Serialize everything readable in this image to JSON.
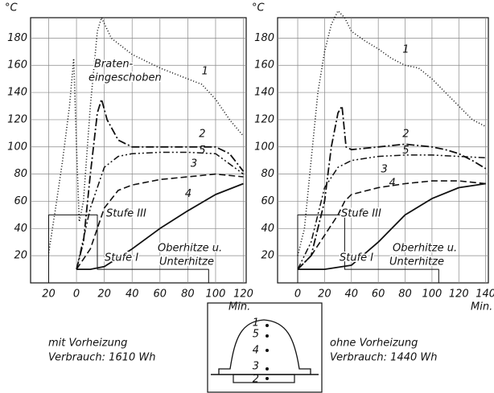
{
  "chart_data": [
    {
      "type": "line",
      "ylabel": "°C",
      "xlabel": "Min.",
      "grid": true,
      "xlim": [
        -33,
        122
      ],
      "ylim": [
        0,
        195
      ],
      "xticks": [
        {
          "value": -20,
          "label": "20"
        },
        0,
        20,
        40,
        60,
        80,
        100,
        120
      ],
      "yticks": [
        20,
        40,
        60,
        80,
        100,
        120,
        140,
        160,
        180
      ],
      "series": [
        {
          "name": "1",
          "color": "#111",
          "dash": "dotted",
          "x": [
            -20,
            -15,
            -10,
            -5,
            -2,
            0,
            2,
            5,
            10,
            15,
            18,
            25,
            40,
            60,
            80,
            90,
            100,
            110,
            120
          ],
          "values": [
            22,
            55,
            90,
            130,
            165,
            100,
            45,
            60,
            130,
            185,
            195,
            180,
            168,
            158,
            150,
            146,
            135,
            120,
            108
          ]
        },
        {
          "name": "2",
          "color": "#111",
          "dash": "dashdot",
          "x": [
            0,
            5,
            10,
            15,
            18,
            22,
            30,
            40,
            60,
            80,
            100,
            110,
            120
          ],
          "values": [
            10,
            30,
            80,
            125,
            135,
            120,
            105,
            100,
            100,
            100,
            100,
            95,
            82
          ]
        },
        {
          "name": "5",
          "color": "#111",
          "dash": "dashdotdot",
          "x": [
            0,
            10,
            20,
            30,
            40,
            60,
            80,
            100,
            120
          ],
          "values": [
            10,
            55,
            85,
            93,
            95,
            96,
            96,
            95,
            80
          ]
        },
        {
          "name": "3",
          "color": "#111",
          "dash": "dashed",
          "x": [
            0,
            10,
            20,
            30,
            40,
            60,
            80,
            100,
            120
          ],
          "values": [
            10,
            25,
            55,
            68,
            72,
            76,
            78,
            80,
            78
          ]
        },
        {
          "name": "4",
          "color": "#111",
          "dash": "solid",
          "x": [
            0,
            10,
            20,
            40,
            60,
            80,
            100,
            120
          ],
          "values": [
            10,
            10,
            12,
            25,
            40,
            53,
            65,
            73
          ]
        },
        {
          "color": "#111",
          "dash": "thin",
          "x": [
            -20,
            -20,
            15,
            15,
            95,
            95
          ],
          "values": [
            0,
            50,
            50,
            10,
            10,
            0
          ]
        }
      ],
      "annotations": [
        "Braten-",
        "eingeschoben",
        "Stufe III",
        "Stufe I",
        "Oberhitze u.",
        "Unterhitze"
      ]
    },
    {
      "type": "line",
      "ylabel": "°C",
      "xlabel": "Min.",
      "grid": true,
      "xlim": [
        -15,
        142
      ],
      "ylim": [
        0,
        195
      ],
      "xticks": [
        0,
        20,
        40,
        60,
        80,
        100,
        120,
        140
      ],
      "yticks": [
        20,
        40,
        60,
        80,
        100,
        120,
        140,
        160,
        180
      ],
      "series": [
        {
          "name": "1",
          "color": "#111",
          "dash": "dotted",
          "x": [
            0,
            5,
            10,
            15,
            20,
            25,
            30,
            35,
            40,
            50,
            60,
            70,
            80,
            90,
            100,
            110,
            120,
            130,
            140
          ],
          "values": [
            20,
            40,
            90,
            140,
            170,
            190,
            200,
            195,
            185,
            178,
            172,
            165,
            160,
            158,
            150,
            140,
            130,
            120,
            115
          ]
        },
        {
          "name": "2",
          "color": "#111",
          "dash": "dashdot",
          "x": [
            0,
            10,
            20,
            25,
            30,
            33,
            36,
            40,
            60,
            80,
            100,
            110,
            120,
            130,
            140
          ],
          "values": [
            10,
            20,
            60,
            100,
            125,
            130,
            100,
            98,
            100,
            102,
            100,
            98,
            95,
            90,
            84
          ]
        },
        {
          "name": "5",
          "color": "#111",
          "dash": "dashdotdot",
          "x": [
            0,
            10,
            20,
            30,
            40,
            60,
            80,
            100,
            120,
            140
          ],
          "values": [
            10,
            30,
            70,
            85,
            90,
            93,
            94,
            94,
            93,
            92
          ]
        },
        {
          "name": "3",
          "color": "#111",
          "dash": "dashed",
          "x": [
            0,
            10,
            20,
            30,
            35,
            40,
            60,
            80,
            100,
            120,
            140
          ],
          "values": [
            10,
            20,
            35,
            50,
            60,
            65,
            70,
            73,
            75,
            75,
            73
          ]
        },
        {
          "name": "4",
          "color": "#111",
          "dash": "solid",
          "x": [
            0,
            20,
            40,
            60,
            80,
            100,
            120,
            140
          ],
          "values": [
            10,
            10,
            13,
            30,
            50,
            62,
            70,
            73
          ]
        },
        {
          "color": "#111",
          "dash": "thin",
          "x": [
            0,
            0,
            35,
            35,
            105,
            105
          ],
          "values": [
            0,
            50,
            50,
            10,
            10,
            0
          ]
        }
      ],
      "annotations": [
        "Stufe III",
        "Stufe I",
        "Oberhitze u.",
        "Unterhitze"
      ]
    }
  ],
  "notes": {
    "left": [
      "mit Vorheizung",
      "Verbrauch: 1610 Wh"
    ],
    "right": [
      "ohne Vorheizung",
      "Verbrauch: 1440 Wh"
    ]
  },
  "diagram": {
    "labels": [
      "1",
      "5",
      "4",
      "3",
      "2"
    ]
  }
}
